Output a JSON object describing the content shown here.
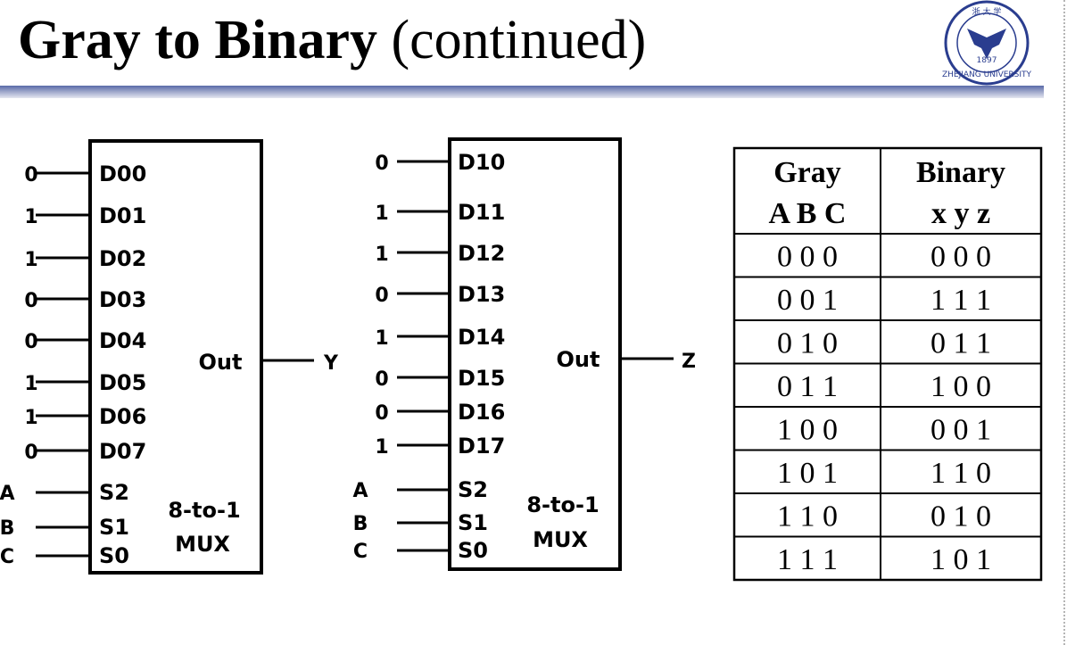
{
  "slide": {
    "title_bold": "Gray to Binary",
    "title_rest": "(continued)"
  },
  "logo": {
    "glyph": "浙 大 学",
    "year": "1897",
    "university": "ZHEJIANG UNIVERSITY"
  },
  "mux1": {
    "data_inputs": [
      {
        "label": "D00",
        "value": "0"
      },
      {
        "label": "D01",
        "value": "1"
      },
      {
        "label": "D02",
        "value": "1"
      },
      {
        "label": "D03",
        "value": "0"
      },
      {
        "label": "D04",
        "value": "0"
      },
      {
        "label": "D05",
        "value": "1"
      },
      {
        "label": "D06",
        "value": "1"
      },
      {
        "label": "D07",
        "value": "0"
      }
    ],
    "selects": [
      {
        "label": "S2",
        "signal": "A"
      },
      {
        "label": "S1",
        "signal": "B"
      },
      {
        "label": "S0",
        "signal": "C"
      }
    ],
    "out_label": "Out",
    "output": "Y",
    "type_line1": "8-to-1",
    "type_line2": "MUX"
  },
  "mux2": {
    "data_inputs": [
      {
        "label": "D10",
        "value": "0"
      },
      {
        "label": "D11",
        "value": "1"
      },
      {
        "label": "D12",
        "value": "1"
      },
      {
        "label": "D13",
        "value": "0"
      },
      {
        "label": "D14",
        "value": "1"
      },
      {
        "label": "D15",
        "value": "0"
      },
      {
        "label": "D16",
        "value": "0"
      },
      {
        "label": "D17",
        "value": "1"
      }
    ],
    "selects": [
      {
        "label": "S2",
        "signal": "A"
      },
      {
        "label": "S1",
        "signal": "B"
      },
      {
        "label": "S0",
        "signal": "C"
      }
    ],
    "out_label": "Out",
    "output": "Z",
    "type_line1": "8-to-1",
    "type_line2": "MUX"
  },
  "table": {
    "headers": [
      {
        "line1": "Gray",
        "line2": "A B C"
      },
      {
        "line1": "Binary",
        "line2": "x y z"
      }
    ],
    "rows": [
      [
        "0 0 0",
        "0 0 0"
      ],
      [
        "0 0 1",
        "1 1 1"
      ],
      [
        "0 1 0",
        "0 1 1"
      ],
      [
        "0 1 1",
        "1 0 0"
      ],
      [
        "1 0 0",
        "0 0 1"
      ],
      [
        "1 0 1",
        "1 1 0"
      ],
      [
        "1 1 0",
        "0 1 0"
      ],
      [
        "1 1 1",
        "1 0 1"
      ]
    ]
  }
}
